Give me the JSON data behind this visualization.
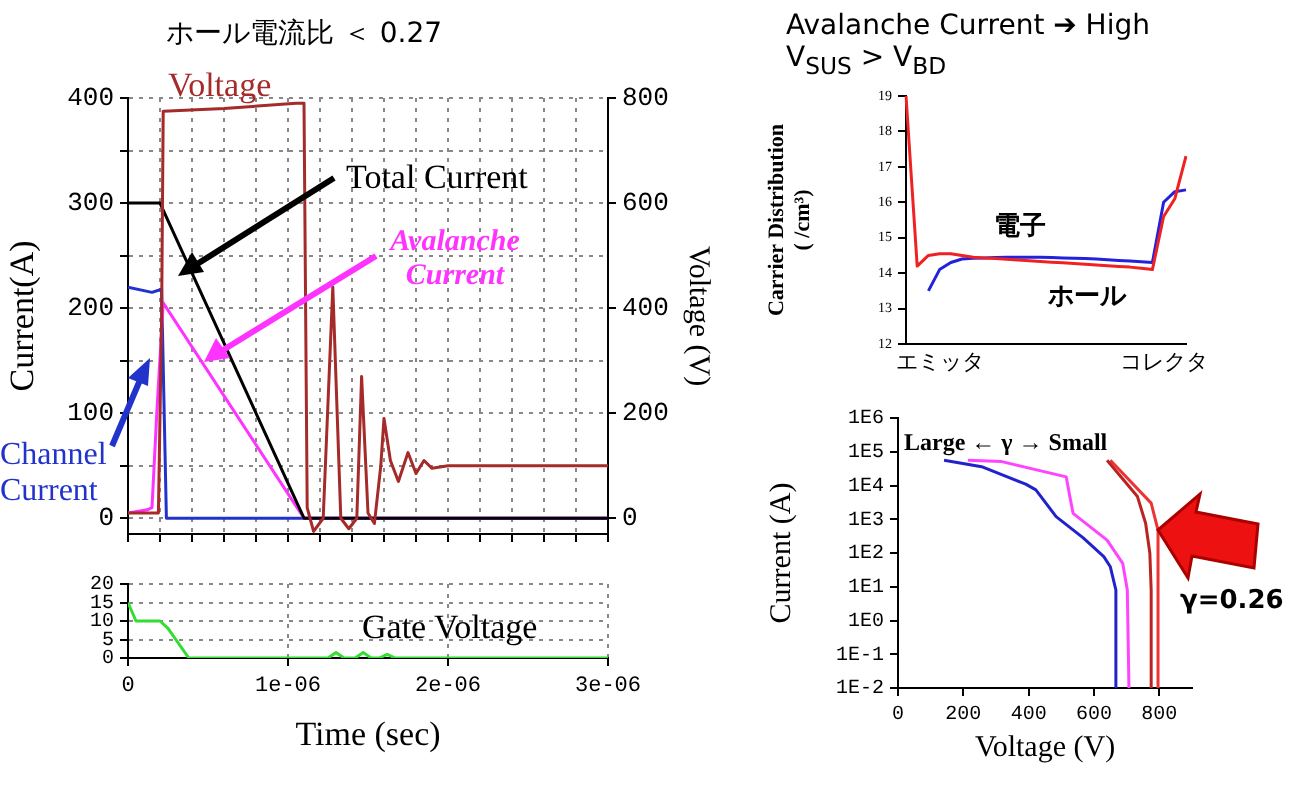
{
  "chart_data": [
    {
      "type": "line",
      "title": "ホール電流比 ＜ 0.27",
      "ylabel": "Current(A)",
      "y2label": "Voltage (V)",
      "xlim": [
        0,
        3e-06
      ],
      "xticks": [
        0,
        2e-07,
        4e-07,
        6e-07,
        8e-07,
        1e-06,
        1.2e-06,
        1.4e-06,
        1.6e-06,
        1.8e-06,
        2e-06,
        2.2e-06,
        2.4e-06,
        2.6e-06,
        2.8e-06,
        3e-06
      ],
      "ylim": [
        -15,
        400
      ],
      "yticks": [
        0,
        {
          "value": 50,
          "label": null
        },
        100,
        {
          "value": 150,
          "label": null
        },
        200,
        {
          "value": 250,
          "label": null
        },
        300,
        {
          "value": 350,
          "label": null
        },
        400
      ],
      "y2lim": [
        -30,
        800
      ],
      "y2ticks": [
        0,
        200,
        400,
        600,
        800
      ],
      "grid": true,
      "marker": "none",
      "tick_labels": "y",
      "series": [
        {
          "name": "Voltage",
          "color": "#a52a2a",
          "axis": "y2",
          "x": [
            0,
            1.9e-07,
            2.1e-07,
            2.2e-07,
            6e-07,
            1.05e-06,
            1.1e-06,
            1.12e-06,
            1.16e-06,
            1.22e-06,
            1.28e-06,
            1.33e-06,
            1.38e-06,
            1.43e-06,
            1.46e-06,
            1.5e-06,
            1.54e-06,
            1.58e-06,
            1.6e-06,
            1.64e-06,
            1.69e-06,
            1.75e-06,
            1.8e-06,
            1.85e-06,
            1.9e-06,
            2e-06,
            3e-06
          ],
          "values": [
            10,
            10,
            380,
            775,
            780,
            790,
            790,
            20,
            -25,
            0,
            440,
            0,
            -20,
            0,
            270,
            10,
            -10,
            100,
            190,
            110,
            70,
            125,
            85,
            110,
            95,
            100,
            100
          ]
        },
        {
          "name": "Total Current",
          "color": "#000000",
          "x": [
            0,
            2e-07,
            1.1e-06,
            3e-06
          ],
          "values": [
            300,
            300,
            0,
            0
          ]
        },
        {
          "name": "Avalanche Current",
          "color": "#ff33ff",
          "x": [
            0,
            1.2e-07,
            1.5e-07,
            1.8e-07,
            2.2e-07,
            1.1e-06,
            3e-06
          ],
          "values": [
            5,
            8,
            10,
            100,
            205,
            0,
            0
          ]
        },
        {
          "name": "Channel Current",
          "color": "#2233cc",
          "x": [
            0,
            1.5e-07,
            2.1e-07,
            2.4e-07,
            3e-06
          ],
          "values": [
            220,
            215,
            218,
            0,
            0
          ]
        }
      ]
    },
    {
      "type": "line",
      "xlabel": "Time (sec)",
      "xlim": [
        0,
        3e-06
      ],
      "xticks": [
        0,
        {
          "value": 1e-06,
          "label": "1e-06"
        },
        {
          "value": 2e-06,
          "label": "2e-06"
        },
        {
          "value": 3e-06,
          "label": "3e-06"
        }
      ],
      "ylim": [
        0,
        20
      ],
      "yticks": [
        0,
        5,
        10,
        15,
        20
      ],
      "grid": true,
      "marker": "none",
      "series": [
        {
          "name": "Gate Voltage",
          "color": "#33dd33",
          "x": [
            0,
            5e-08,
            2e-07,
            2.5e-07,
            3.8e-07,
            1.25e-06,
            1.3e-06,
            1.35e-06,
            1.42e-06,
            1.47e-06,
            1.52e-06,
            1.57e-06,
            1.62e-06,
            1.67e-06,
            3e-06
          ],
          "values": [
            15,
            10,
            10,
            8,
            0,
            0,
            1.5,
            0,
            0,
            1.5,
            0,
            0,
            1,
            0,
            0
          ]
        }
      ]
    },
    {
      "type": "line",
      "title": "Avalanche Current ➔ High",
      "subtitle": "V$_{SUS}$   >    V$_{BD}$",
      "ylabel": "Carrier Distribution ( /cm³)",
      "categories": [
        null,
        null,
        null,
        "エミッタ",
        null,
        null,
        null,
        null,
        null,
        null,
        null,
        null,
        null,
        null,
        null,
        null,
        null,
        null,
        null,
        null,
        null,
        null,
        null,
        "コレクタ",
        null,
        null
      ],
      "ylim": [
        12,
        19
      ],
      "yticks": [
        12,
        13,
        14,
        15,
        16,
        17,
        18,
        19
      ],
      "marker": "none",
      "series": [
        {
          "name": "電子",
          "color": "#ee2222",
          "values": [
            19.0,
            14.2,
            14.5,
            14.55,
            14.55,
            14.5,
            14.45,
            14.43,
            14.41,
            14.39,
            14.37,
            14.35,
            14.33,
            14.31,
            14.29,
            14.27,
            14.25,
            14.23,
            14.21,
            14.19,
            14.17,
            14.14,
            14.1,
            15.6,
            16.1,
            17.3
          ]
        },
        {
          "name": "ホール",
          "color": "#2222dd",
          "values": [
            null,
            null,
            13.5,
            14.1,
            14.3,
            14.4,
            14.42,
            14.43,
            14.44,
            14.45,
            14.45,
            14.45,
            14.45,
            14.44,
            14.43,
            14.42,
            14.41,
            14.4,
            14.38,
            14.36,
            14.34,
            14.32,
            14.3,
            16.0,
            16.3,
            16.35
          ]
        }
      ]
    },
    {
      "type": "line",
      "xlabel": "Voltage (V)",
      "ylabel": "Current (A)",
      "xlim": [
        0,
        900
      ],
      "xticks": [
        0,
        200,
        400,
        600,
        800
      ],
      "ylim": [
        0.01,
        1000000
      ],
      "yticks": [
        {
          "value": 0.01,
          "label": "1E-2"
        },
        {
          "value": 0.1,
          "label": "1E-1"
        },
        {
          "value": 1,
          "label": "1E0"
        },
        {
          "value": 10,
          "label": "1E1"
        },
        {
          "value": 100,
          "label": "1E2"
        },
        {
          "value": 1000,
          "label": "1E3"
        },
        {
          "value": 10000,
          "label": "1E4"
        },
        {
          "value": 100000,
          "label": "1E5"
        },
        {
          "value": 1000000,
          "label": "1E6"
        }
      ],
      "log": true,
      "marker": "none",
      "annotations": [
        "Large  ←  γ  →  Small",
        "γ=0.26"
      ],
      "series": [
        {
          "color": "#2222cc",
          "x": [
            141,
            256,
            391,
            422,
            484,
            567,
            630,
            650,
            667,
            667
          ],
          "values": [
            56000,
            36000,
            11000,
            7400,
            1200,
            280,
            78,
            39,
            8,
            0.01
          ]
        },
        {
          "color": "#ff44ff",
          "x": [
            214,
            318,
            515,
            526,
            536,
            640,
            688,
            702,
            707
          ],
          "values": [
            56000,
            51000,
            18000,
            4700,
            1500,
            240,
            49,
            8,
            0.01
          ]
        },
        {
          "color": "#bb2222",
          "x": [
            640,
            733,
            758,
            771,
            775,
            775
          ],
          "values": [
            56000,
            4700,
            760,
            98,
            8,
            0.01
          ]
        },
        {
          "color": "#ee3333",
          "x": [
            650,
            775,
            796,
            796
          ],
          "values": [
            56000,
            3000,
            480,
            0.01
          ]
        }
      ]
    }
  ]
}
